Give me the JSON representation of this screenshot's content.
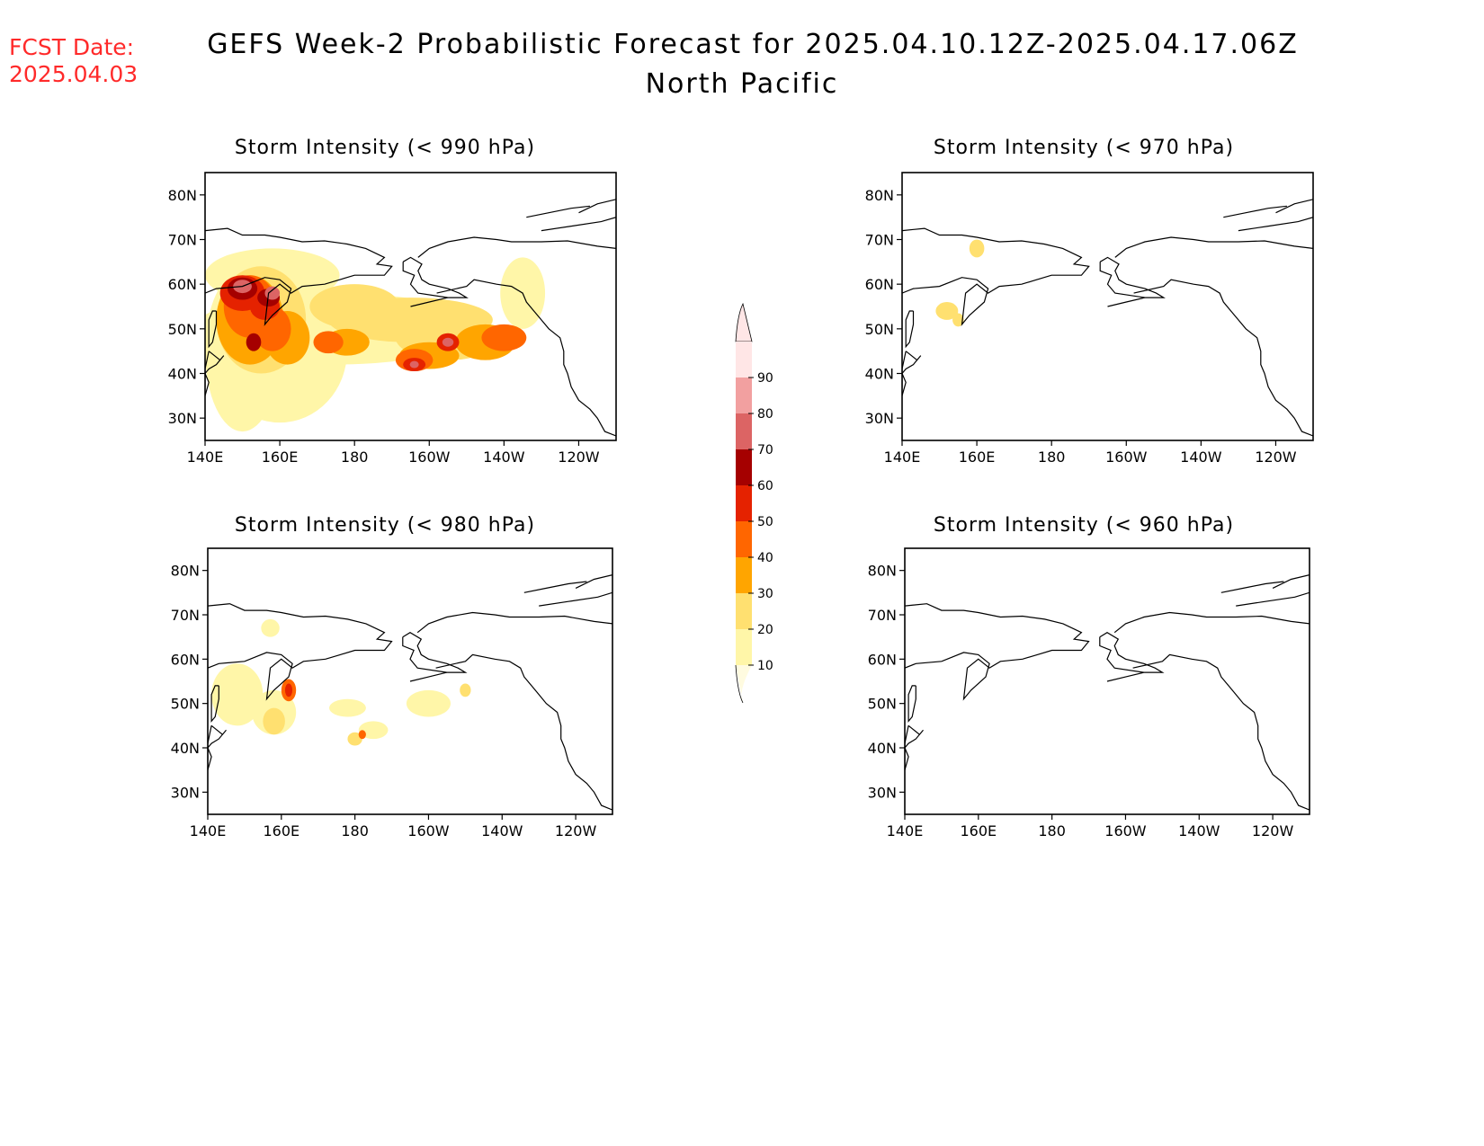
{
  "header": {
    "fcst_label": "FCST Date:",
    "fcst_date": "2025.04.03",
    "title": "GEFS Week-2 Probabilistic Forecast for 2025.04.10.12Z-2025.04.17.06Z",
    "subtitle": "North Pacific"
  },
  "panels": [
    {
      "title": "Storm Intensity (< 990 hPa)"
    },
    {
      "title": "Storm Intensity (< 970 hPa)"
    },
    {
      "title": "Storm Intensity (< 980 hPa)"
    },
    {
      "title": "Storm Intensity (< 960 hPa)"
    }
  ],
  "axes": {
    "lat_labels": [
      "80N",
      "70N",
      "60N",
      "50N",
      "40N",
      "30N"
    ],
    "lon_labels": [
      "140E",
      "160E",
      "180",
      "160W",
      "140W",
      "120W"
    ]
  },
  "colorbar": {
    "levels": [
      "10",
      "20",
      "30",
      "40",
      "50",
      "60",
      "70",
      "80",
      "90"
    ],
    "colors": [
      "#fff6a8",
      "#ffe070",
      "#ffa500",
      "#ff6600",
      "#e52200",
      "#a50000",
      "#dc6464",
      "#f2a0a0",
      "#ffe6e6"
    ]
  }
}
